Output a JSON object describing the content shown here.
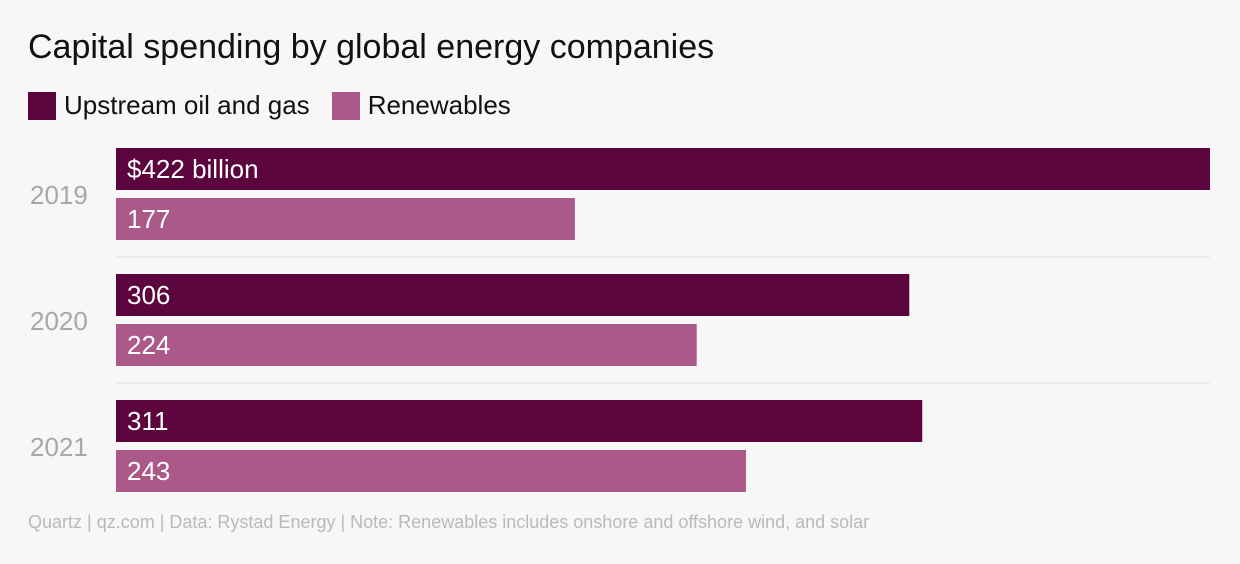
{
  "chart_data": {
    "type": "bar",
    "orientation": "horizontal",
    "title": "Capital spending by global energy companies",
    "categories": [
      "2019",
      "2020",
      "2021"
    ],
    "series": [
      {
        "name": "Upstream oil and gas",
        "color": "#5b043e",
        "values": [
          422,
          306,
          311
        ],
        "labels": [
          "$422 billion",
          "306",
          "311"
        ]
      },
      {
        "name": "Renewables",
        "color": "#ab5988",
        "values": [
          177,
          224,
          243
        ],
        "labels": [
          "177",
          "224",
          "243"
        ]
      }
    ],
    "xlim": [
      0,
      422
    ],
    "grid": false,
    "legend": "top-left",
    "source": "Quartz | qz.com | Data: Rystad Energy | Note: Renewables includes onshore and offshore wind, and solar"
  }
}
